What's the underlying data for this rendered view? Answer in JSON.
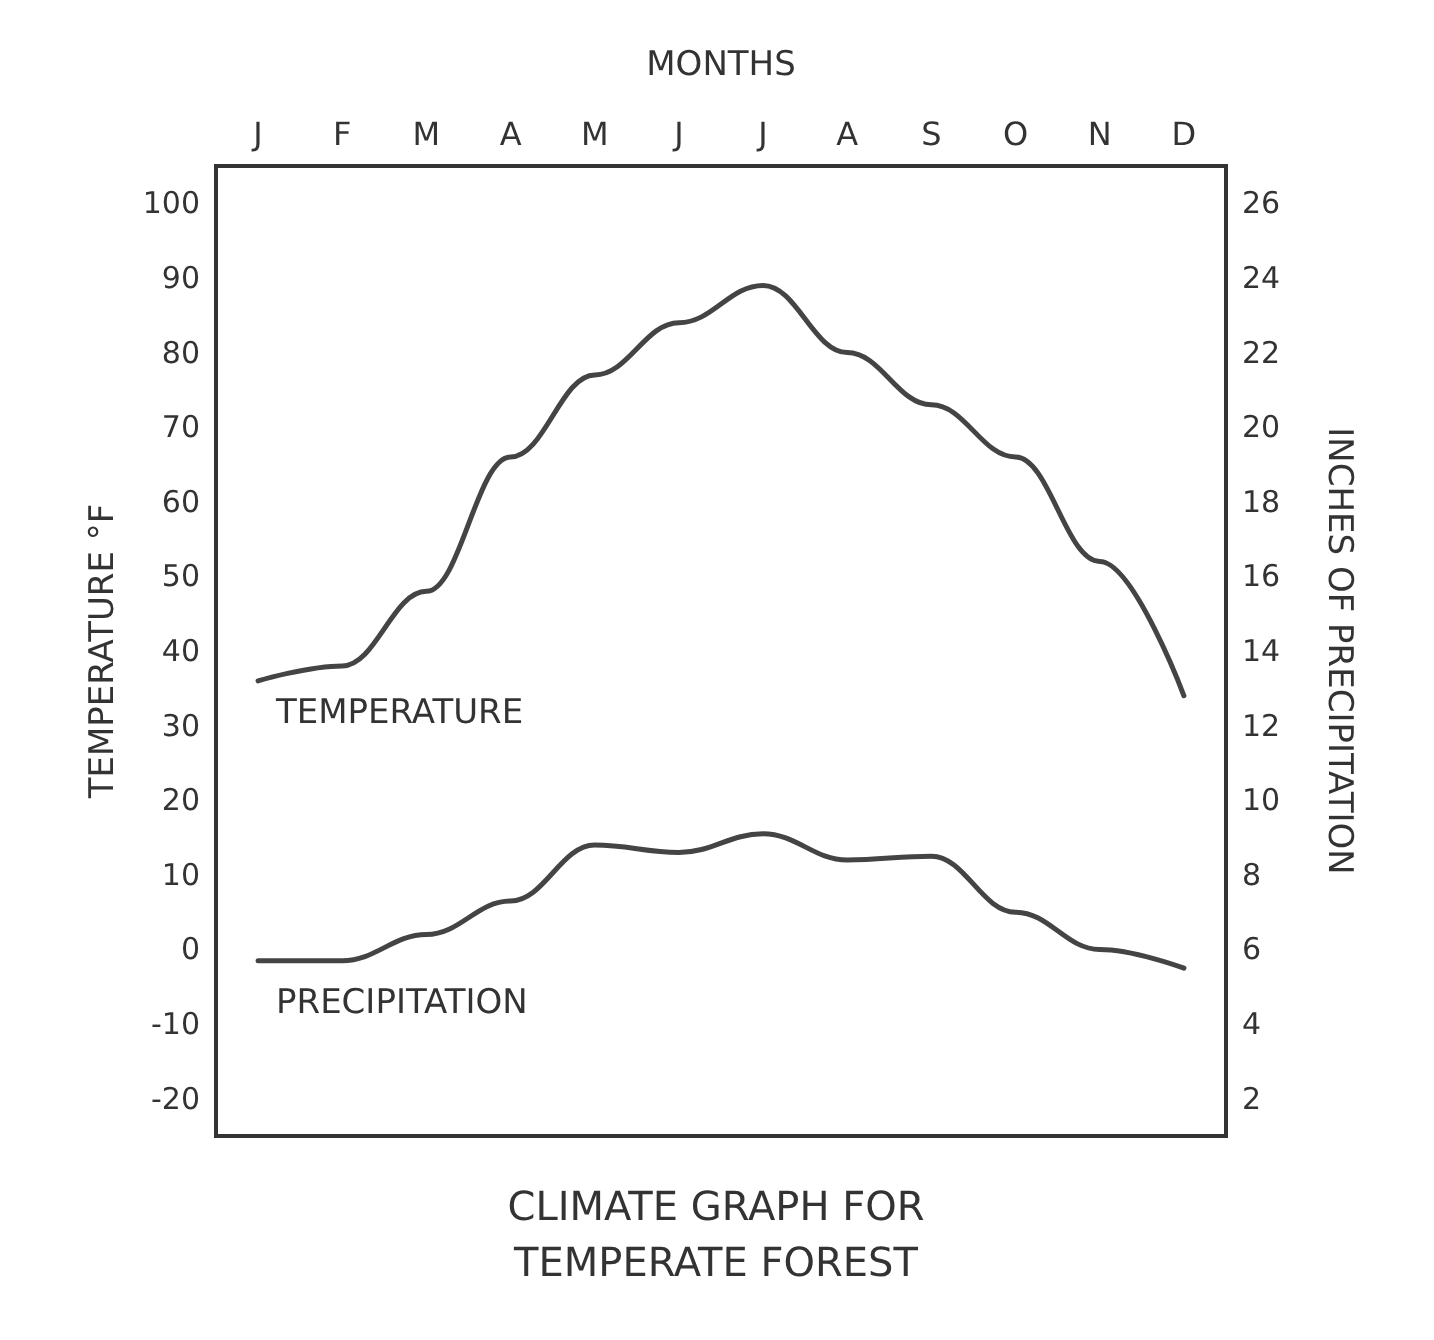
{
  "chart_data": {
    "type": "line",
    "title": "CLIMATE GRAPH FOR\nTEMPERATE FOREST",
    "xlabel": "MONTHS",
    "ylabel": "TEMPERATURE °F",
    "y2label": "INCHES OF PRECIPITATION",
    "categories": [
      "J",
      "F",
      "M",
      "A",
      "M",
      "J",
      "J",
      "A",
      "S",
      "O",
      "N",
      "D"
    ],
    "series": [
      {
        "name": "TEMPERATURE",
        "color": "#444444",
        "values": [
          36,
          38,
          48,
          66,
          77,
          84,
          89,
          80,
          73,
          66,
          52,
          34
        ]
      },
      {
        "name": "PRECIPITATION",
        "color": "#444444",
        "axis": "y2",
        "values": [
          5.7,
          5.7,
          6.4,
          7.3,
          8.8,
          8.6,
          9.1,
          8.4,
          8.5,
          7.0,
          6.0,
          5.5
        ]
      }
    ],
    "ylim": [
      -25,
      105
    ],
    "yticks": [
      -20,
      -10,
      0,
      10,
      20,
      30,
      40,
      50,
      60,
      70,
      80,
      90,
      100
    ],
    "y2lim": [
      1,
      27
    ],
    "y2ticks": [
      2,
      4,
      6,
      8,
      10,
      12,
      14,
      16,
      18,
      20,
      22,
      24,
      26
    ],
    "grid": false,
    "legend": false,
    "marker": "none",
    "line_style": "solid"
  }
}
